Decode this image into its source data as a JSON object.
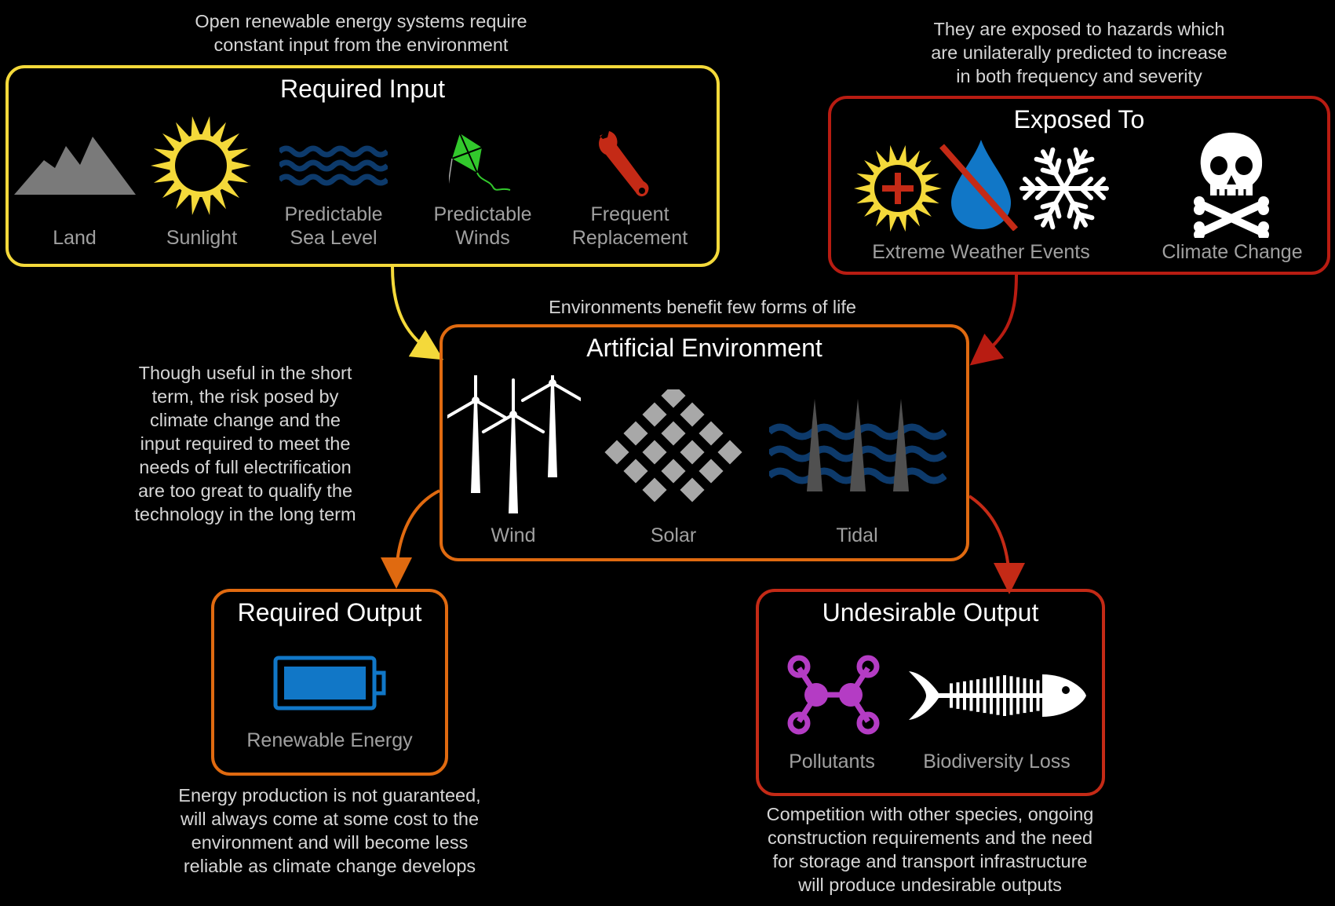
{
  "notes": {
    "top_left": "Open renewable energy systems require\nconstant input from the environment",
    "top_right": "They are exposed to hazards which\nare unilaterally predicted to increase\nin both frequency and severity",
    "middle": "Environments benefit few forms of life",
    "left": "Though useful in the short\nterm, the risk posed by\nclimate change and the\ninput required to meet the\nneeds of full electrification\nare too great to qualify the\ntechnology in the long term",
    "bottom_left": "Energy production is not guaranteed,\nwill always come at some cost to the\nenvironment and will become less\nreliable as climate change develops",
    "bottom_right": "Competition with other species, ongoing\nconstruction requirements and the need\nfor storage and transport infrastructure\nwill produce undesirable outputs"
  },
  "required_input": {
    "title": "Required Input",
    "items": [
      "Land",
      "Sunlight",
      "Predictable\nSea Level",
      "Predictable\nWinds",
      "Frequent\nReplacement"
    ]
  },
  "exposed_to": {
    "title": "Exposed To",
    "items": [
      "Extreme Weather Events",
      "Climate Change"
    ]
  },
  "artificial_environment": {
    "title": "Artificial Environment",
    "items": [
      "Wind",
      "Solar",
      "Tidal"
    ]
  },
  "required_output": {
    "title": "Required Output",
    "items": [
      "Renewable Energy"
    ]
  },
  "undesirable_output": {
    "title": "Undesirable Output",
    "items": [
      "Pollutants",
      "Biodiversity Loss"
    ]
  },
  "icons": [
    "mountain-icon",
    "sun-icon",
    "waves-icon",
    "kite-icon",
    "wrench-icon",
    "hot-sun-icon",
    "no-water-icon",
    "snowflake-icon",
    "skull-crossbones-icon",
    "wind-turbines-icon",
    "solar-panels-icon",
    "tidal-icon",
    "battery-icon",
    "molecule-icon",
    "fish-skeleton-icon"
  ],
  "colors": {
    "yellow": "#f4d93a",
    "dark_red": "#b81c12",
    "orange": "#e06a10",
    "red": "#c42a16",
    "sea_blue": "#0d3a6b",
    "battery_blue": "#1177c7",
    "purple": "#b43cc4",
    "kite_green": "#32c82c"
  }
}
